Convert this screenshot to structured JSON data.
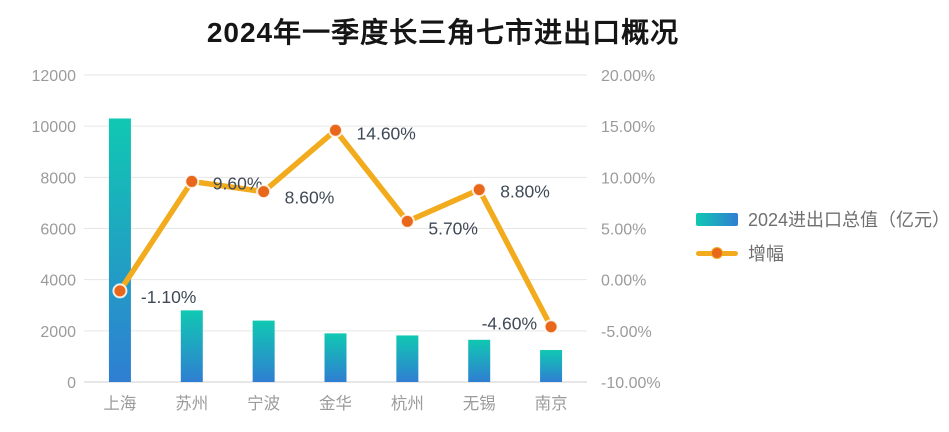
{
  "title": "2024年一季度长三角七市进出口概况",
  "legend": {
    "items": [
      "2024进出口总值（亿元）",
      "增幅"
    ]
  },
  "chart_data": {
    "type": "bar+line combo",
    "categories": [
      "上海",
      "苏州",
      "宁波",
      "金华",
      "杭州",
      "无锡",
      "南京"
    ],
    "series": [
      {
        "name": "2024进出口总值（亿元）",
        "type": "bar",
        "axis": "left",
        "values": [
          10300,
          2800,
          2400,
          1900,
          1820,
          1650,
          1250
        ]
      },
      {
        "name": "增幅",
        "type": "line",
        "axis": "right",
        "values": [
          -1.1,
          9.6,
          8.6,
          14.6,
          5.7,
          8.8,
          -4.6
        ],
        "point_labels": [
          "-1.10%",
          "9.60%",
          "8.60%",
          "14.60%",
          "5.70%",
          "8.80%",
          "-4.60%"
        ]
      }
    ],
    "left_axis": {
      "min": 0,
      "max": 12000,
      "step": 2000,
      "ticks": [
        "0",
        "2000",
        "4000",
        "6000",
        "8000",
        "10000",
        "12000"
      ]
    },
    "right_axis": {
      "min": -10,
      "max": 20,
      "step": 5,
      "ticks": [
        "-10.00%",
        "-5.00%",
        "0.00%",
        "5.00%",
        "10.00%",
        "15.00%",
        "20.00%"
      ]
    },
    "grid": true,
    "legend_position": "right"
  },
  "label_layout": {
    "sides": [
      "right",
      "right",
      "right",
      "right",
      "right",
      "right",
      "left"
    ],
    "dy": [
      6,
      2,
      6,
      3,
      7,
      2,
      -3
    ]
  },
  "colors": {
    "bar_top": "#10c8b2",
    "bar_bottom": "#2f7ed2",
    "line": "#f2ab1d",
    "marker": "#e8671a",
    "marker_ring": "#ffffff",
    "grid": "#e6e6e6",
    "axis_line": "#cfcfcf",
    "axis_text": "#9b9b9b",
    "point_label_text": "#3f4a57",
    "title_text": "#151515",
    "legend_text": "#6f6f6f",
    "background": "#ffffff"
  }
}
